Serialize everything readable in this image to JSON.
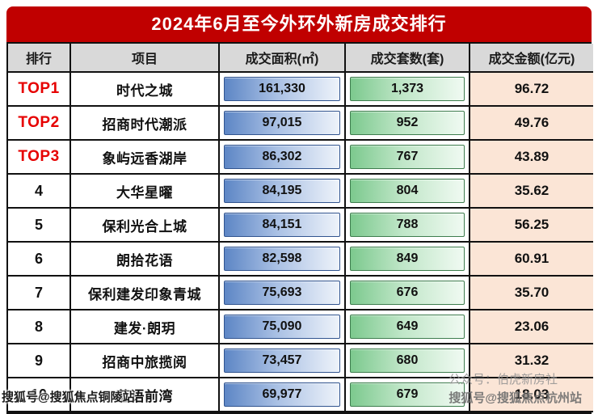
{
  "title": "2024年6月至今外环外新房成交排行",
  "table": {
    "columns": [
      "排行",
      "项目",
      "成交面积(㎡)",
      "成交套数(套)",
      "成交金额(亿元)"
    ],
    "rows": [
      {
        "rank": "TOP1",
        "project": "时代之城",
        "area": "161,330",
        "units": "1,373",
        "amount": "96.72"
      },
      {
        "rank": "TOP2",
        "project": "招商时代潮派",
        "area": "97,015",
        "units": "952",
        "amount": "49.76"
      },
      {
        "rank": "TOP3",
        "project": "象屿远香湖岸",
        "area": "86,302",
        "units": "767",
        "amount": "43.89"
      },
      {
        "rank": "4",
        "project": "大华星曜",
        "area": "84,195",
        "units": "804",
        "amount": "35.62"
      },
      {
        "rank": "5",
        "project": "保利光合上城",
        "area": "84,151",
        "units": "788",
        "amount": "56.25"
      },
      {
        "rank": "6",
        "project": "朗拾花语",
        "area": "82,598",
        "units": "849",
        "amount": "60.91"
      },
      {
        "rank": "7",
        "project": "保利建发印象青城",
        "area": "75,693",
        "units": "676",
        "amount": "35.70"
      },
      {
        "rank": "8",
        "project": "建发·朗玥",
        "area": "75,090",
        "units": "649",
        "amount": "23.06"
      },
      {
        "rank": "9",
        "project": "招商中旅揽阅",
        "area": "73,457",
        "units": "680",
        "amount": "31.32"
      },
      {
        "rank": "10",
        "project": "蓝语前湾",
        "area": "69,977",
        "units": "679",
        "amount": "18.03"
      }
    ]
  },
  "watermarks": {
    "bottom_left": "搜狐号@搜狐焦点铜陵站",
    "center_right": "公众号：伯虎新房社",
    "bottom_right": "搜狐号@搜狐焦点杭州站"
  },
  "colors": {
    "title_bg": "#c00000",
    "header_bg": "#d9d9d9",
    "top_rank_red": "#e60000",
    "area_bar_blue": "#5d86c5",
    "units_bar_green": "#7cc98e",
    "amount_bg_peach": "#fbe5d6"
  },
  "chart_data": {
    "type": "table",
    "title": "2024年6月至今外环外新房成交排行",
    "columns": [
      "排行",
      "项目",
      "成交面积(㎡)",
      "成交套数(套)",
      "成交金额(亿元)"
    ],
    "rows": [
      [
        "TOP1",
        "时代之城",
        161330,
        1373,
        96.72
      ],
      [
        "TOP2",
        "招商时代潮派",
        97015,
        952,
        49.76
      ],
      [
        "TOP3",
        "象屿远香湖岸",
        86302,
        767,
        43.89
      ],
      [
        "4",
        "大华星曜",
        84195,
        804,
        35.62
      ],
      [
        "5",
        "保利光合上城",
        84151,
        788,
        56.25
      ],
      [
        "6",
        "朗拾花语",
        82598,
        849,
        60.91
      ],
      [
        "7",
        "保利建发印象青城",
        75693,
        676,
        35.7
      ],
      [
        "8",
        "建发·朗玥",
        75090,
        649,
        23.06
      ],
      [
        "9",
        "招商中旅揽阅",
        73457,
        680,
        31.32
      ],
      [
        "10",
        "蓝语前湾",
        69977,
        679,
        18.03
      ]
    ]
  }
}
